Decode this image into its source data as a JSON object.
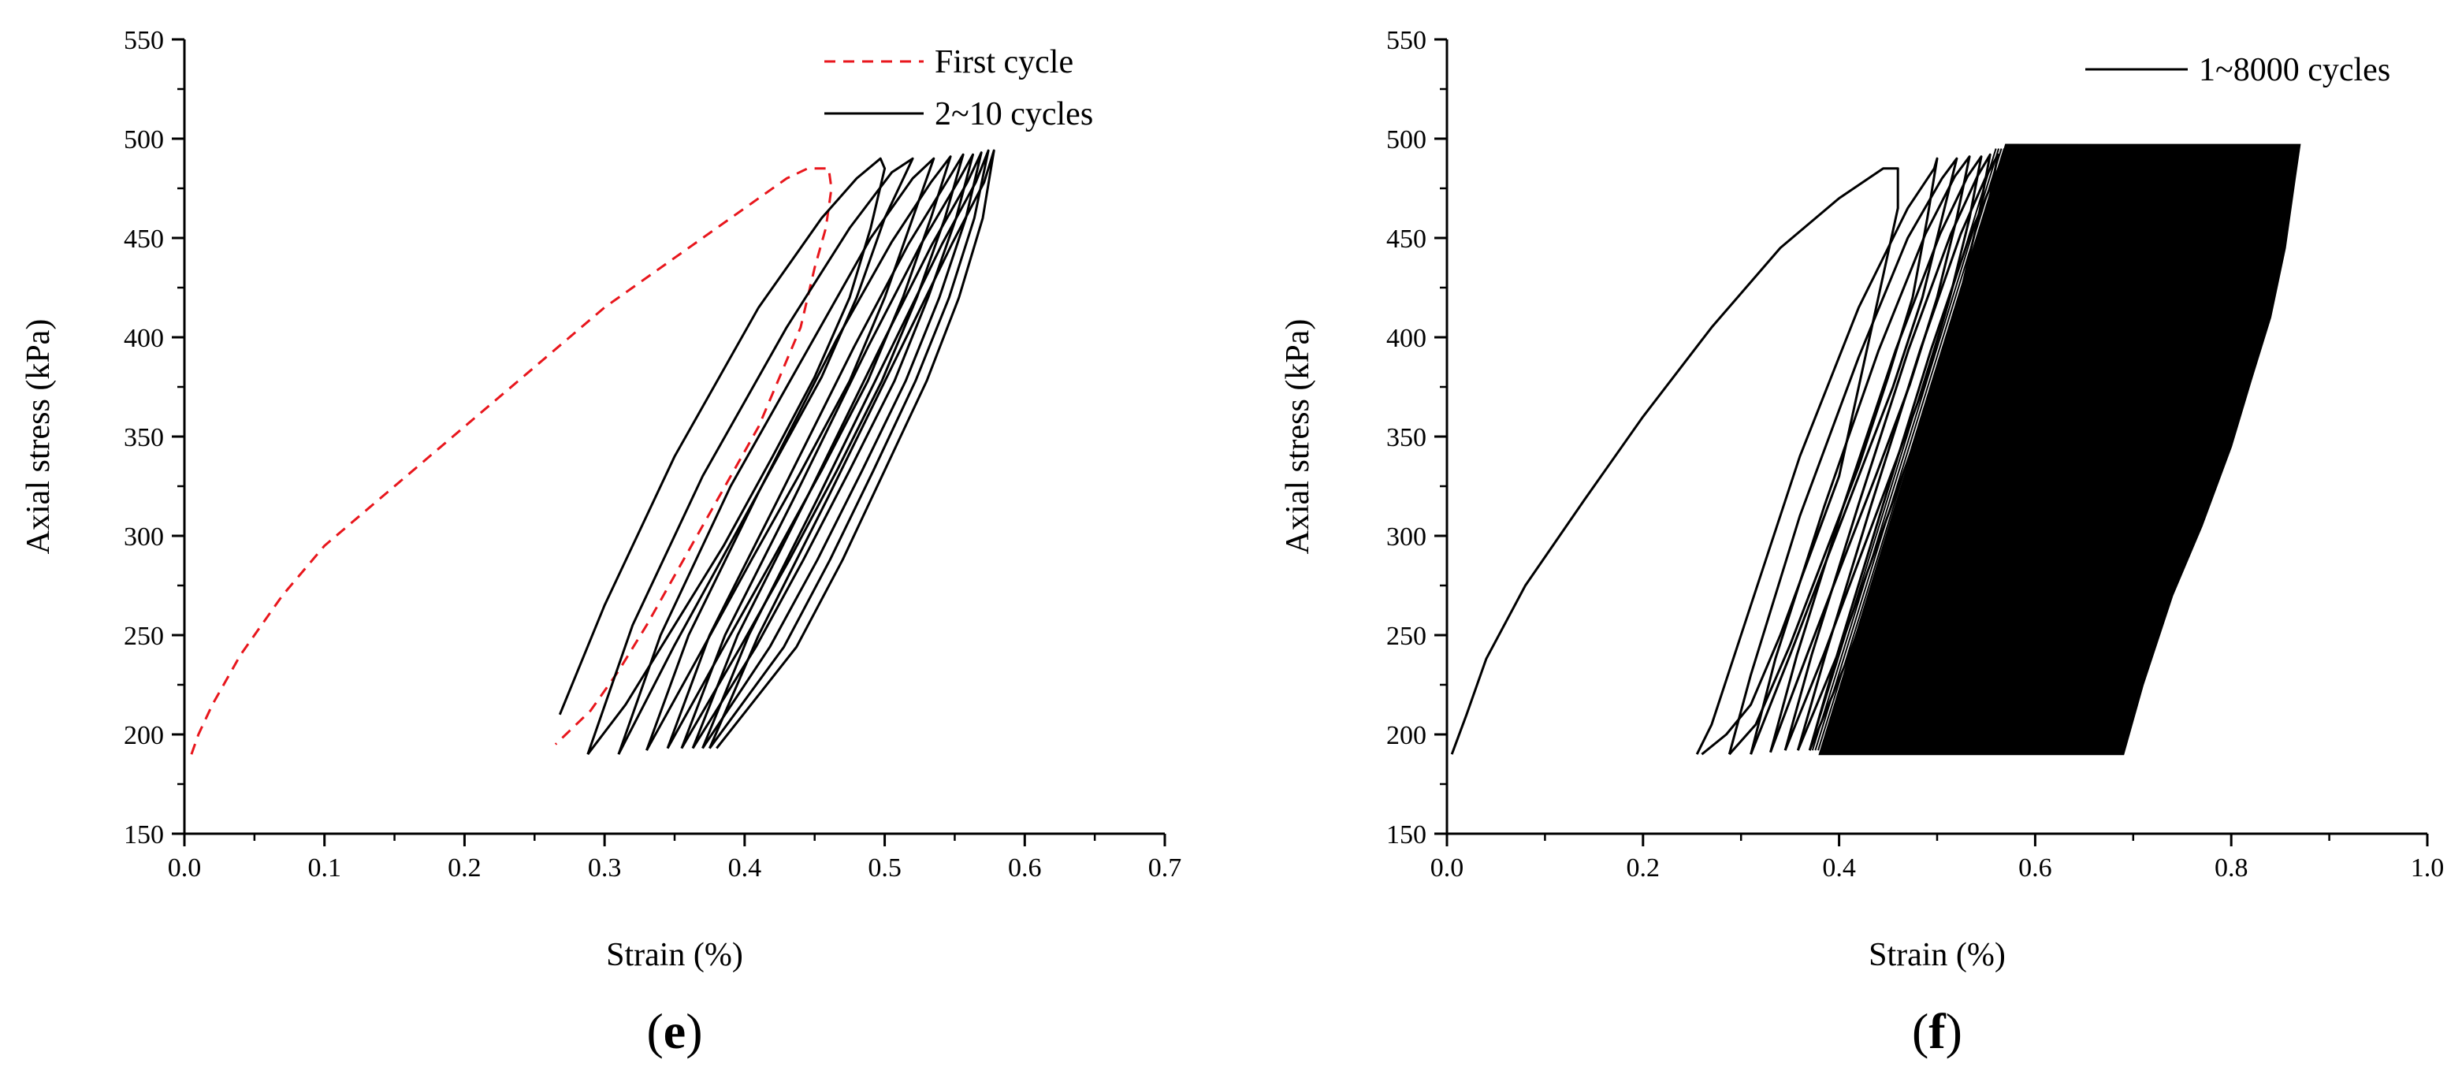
{
  "chart_data": [
    {
      "type": "line",
      "panel_label": "e",
      "xlabel": "Strain (%)",
      "ylabel": "Axial stress  (kPa)",
      "xlim": [
        0.0,
        0.7
      ],
      "ylim": [
        150,
        550
      ],
      "xticks": [
        "0.0",
        "0.1",
        "0.2",
        "0.3",
        "0.4",
        "0.5",
        "0.6",
        "0.7"
      ],
      "yticks": [
        "150",
        "200",
        "250",
        "300",
        "350",
        "400",
        "450",
        "500",
        "550"
      ],
      "grid": false,
      "legend_position": "top-right",
      "series": [
        {
          "name": "First cycle",
          "color": "#e8161c",
          "style": "dashed",
          "x": [
            0.005,
            0.01,
            0.02,
            0.04,
            0.07,
            0.1,
            0.15,
            0.2,
            0.25,
            0.3,
            0.35,
            0.4,
            0.43,
            0.445,
            0.46,
            0.462,
            0.458,
            0.45,
            0.44,
            0.425,
            0.41,
            0.39,
            0.37,
            0.35,
            0.33,
            0.31,
            0.29,
            0.265
          ],
          "y": [
            190,
            200,
            215,
            240,
            270,
            295,
            325,
            355,
            385,
            415,
            440,
            465,
            480,
            485,
            485,
            475,
            455,
            435,
            405,
            380,
            355,
            330,
            305,
            280,
            255,
            232,
            212,
            195
          ]
        },
        {
          "name": "2~10 cycles",
          "color": "#000000",
          "style": "solid",
          "cycles": [
            {
              "x": [
                0.268,
                0.3,
                0.35,
                0.41,
                0.455,
                0.48,
                0.497,
                0.5,
                0.49,
                0.475,
                0.45,
                0.42,
                0.385,
                0.35,
                0.315,
                0.288
              ],
              "y": [
                210,
                265,
                340,
                415,
                460,
                480,
                490,
                485,
                455,
                420,
                380,
                340,
                295,
                255,
                215,
                190
              ]
            },
            {
              "x": [
                0.288,
                0.32,
                0.37,
                0.43,
                0.475,
                0.505,
                0.52,
                0.5,
                0.48,
                0.455,
                0.42,
                0.385,
                0.35,
                0.31
              ],
              "y": [
                190,
                255,
                330,
                405,
                455,
                483,
                490,
                460,
                420,
                380,
                335,
                290,
                245,
                190
              ]
            },
            {
              "x": [
                0.31,
                0.34,
                0.39,
                0.45,
                0.49,
                0.52,
                0.535,
                0.52,
                0.5,
                0.475,
                0.44,
                0.405,
                0.37,
                0.33
              ],
              "y": [
                190,
                250,
                325,
                400,
                450,
                480,
                490,
                460,
                420,
                378,
                332,
                288,
                243,
                192
              ]
            },
            {
              "x": [
                0.33,
                0.36,
                0.41,
                0.465,
                0.505,
                0.533,
                0.547,
                0.533,
                0.513,
                0.488,
                0.455,
                0.42,
                0.385,
                0.345
              ],
              "y": [
                192,
                250,
                322,
                398,
                448,
                478,
                491,
                460,
                420,
                378,
                333,
                288,
                244,
                193
              ]
            },
            {
              "x": [
                0.345,
                0.375,
                0.425,
                0.478,
                0.517,
                0.544,
                0.556,
                0.543,
                0.523,
                0.498,
                0.466,
                0.432,
                0.397,
                0.355
              ],
              "y": [
                193,
                250,
                320,
                395,
                447,
                478,
                492,
                460,
                420,
                378,
                333,
                288,
                244,
                193
              ]
            },
            {
              "x": [
                0.355,
                0.386,
                0.436,
                0.488,
                0.526,
                0.552,
                0.563,
                0.551,
                0.531,
                0.507,
                0.475,
                0.442,
                0.408,
                0.363
              ],
              "y": [
                193,
                250,
                320,
                395,
                447,
                478,
                492,
                460,
                420,
                378,
                333,
                288,
                244,
                193
              ]
            },
            {
              "x": [
                0.363,
                0.395,
                0.445,
                0.497,
                0.534,
                0.559,
                0.569,
                0.558,
                0.539,
                0.515,
                0.484,
                0.452,
                0.418,
                0.37
              ],
              "y": [
                193,
                250,
                320,
                395,
                447,
                478,
                493,
                460,
                420,
                378,
                333,
                288,
                244,
                193
              ]
            },
            {
              "x": [
                0.37,
                0.403,
                0.453,
                0.505,
                0.541,
                0.565,
                0.574,
                0.564,
                0.546,
                0.522,
                0.492,
                0.461,
                0.428,
                0.375
              ],
              "y": [
                193,
                250,
                320,
                395,
                447,
                478,
                494,
                460,
                420,
                378,
                333,
                288,
                244,
                193
              ]
            },
            {
              "x": [
                0.375,
                0.41,
                0.46,
                0.512,
                0.548,
                0.571,
                0.578,
                0.57,
                0.553,
                0.53,
                0.5,
                0.47,
                0.437,
                0.38
              ],
              "y": [
                193,
                250,
                320,
                395,
                447,
                478,
                494,
                460,
                420,
                378,
                333,
                288,
                244,
                193
              ]
            }
          ]
        }
      ]
    },
    {
      "type": "line",
      "panel_label": "f",
      "xlabel": "Strain (%)",
      "ylabel": "Axial stress (kPa)",
      "xlim": [
        0.0,
        1.0
      ],
      "ylim": [
        150,
        550
      ],
      "xticks": [
        "0.0",
        "0.2",
        "0.4",
        "0.6",
        "0.8",
        "1.0"
      ],
      "yticks": [
        "150",
        "200",
        "250",
        "300",
        "350",
        "400",
        "450",
        "500",
        "550"
      ],
      "grid": false,
      "legend_position": "top-right",
      "series": [
        {
          "name": "1~8000 cycles",
          "color": "#000000",
          "style": "solid",
          "first_loading": {
            "x": [
              0.005,
              0.02,
              0.04,
              0.08,
              0.14,
              0.2,
              0.27,
              0.34,
              0.4,
              0.43,
              0.445,
              0.46,
              0.46,
              0.44,
              0.42,
              0.4,
              0.37,
              0.34,
              0.31,
              0.285,
              0.26
            ],
            "y": [
              190,
              210,
              238,
              275,
              318,
              360,
              405,
              445,
              470,
              480,
              485,
              485,
              465,
              420,
              375,
              330,
              290,
              250,
              215,
              200,
              190
            ]
          },
          "early_cycles": [
            {
              "x": [
                0.255,
                0.27,
                0.31,
                0.36,
                0.42,
                0.47,
                0.497,
                0.5,
                0.49,
                0.475,
                0.45,
                0.42,
                0.385,
                0.35,
                0.315,
                0.288
              ],
              "y": [
                190,
                205,
                265,
                340,
                415,
                465,
                485,
                490,
                460,
                420,
                380,
                335,
                290,
                245,
                205,
                190
              ]
            },
            {
              "x": [
                0.288,
                0.31,
                0.36,
                0.42,
                0.47,
                0.505,
                0.52,
                0.505,
                0.485,
                0.455,
                0.42,
                0.385,
                0.35,
                0.31
              ],
              "y": [
                190,
                230,
                310,
                390,
                450,
                480,
                490,
                460,
                420,
                375,
                330,
                285,
                240,
                190
              ]
            },
            {
              "x": [
                0.31,
                0.335,
                0.385,
                0.44,
                0.488,
                0.518,
                0.533,
                0.52,
                0.5,
                0.472,
                0.438,
                0.403,
                0.368,
                0.33
              ],
              "y": [
                190,
                238,
                315,
                393,
                452,
                481,
                491,
                460,
                420,
                376,
                331,
                286,
                241,
                191
              ]
            },
            {
              "x": [
                0.33,
                0.357,
                0.405,
                0.458,
                0.503,
                0.531,
                0.545,
                0.533,
                0.513,
                0.487,
                0.453,
                0.419,
                0.385,
                0.345
              ],
              "y": [
                191,
                240,
                316,
                394,
                452,
                481,
                491,
                460,
                420,
                376,
                331,
                286,
                241,
                192
              ]
            },
            {
              "x": [
                0.345,
                0.372,
                0.42,
                0.471,
                0.514,
                0.541,
                0.554,
                0.542,
                0.523,
                0.498,
                0.465,
                0.432,
                0.399,
                0.358
              ],
              "y": [
                192,
                240,
                316,
                394,
                452,
                481,
                492,
                460,
                420,
                376,
                331,
                286,
                241,
                192
              ]
            },
            {
              "x": [
                0.358,
                0.386,
                0.433,
                0.483,
                0.524,
                0.55,
                0.562,
                0.55,
                0.532,
                0.508,
                0.476,
                0.444,
                0.411,
                0.37
              ],
              "y": [
                192,
                240,
                316,
                394,
                452,
                481,
                492,
                460,
                420,
                376,
                331,
                286,
                241,
                192
              ]
            },
            {
              "x": [
                0.37,
                0.398,
                0.445,
                0.494,
                0.534,
                0.559,
                0.57,
                0.559,
                0.541,
                0.518,
                0.487,
                0.456,
                0.424,
                0.382
              ],
              "y": [
                192,
                240,
                316,
                394,
                452,
                481,
                493,
                460,
                420,
                376,
                331,
                286,
                241,
                192
              ]
            }
          ],
          "dense_band": {
            "lower_left_x": 0.38,
            "lower_right_x": 0.69,
            "upper_left_x": 0.57,
            "upper_right_x": 0.87,
            "y_min": 190,
            "y_max": 497,
            "right_edge": {
              "x": [
                0.69,
                0.71,
                0.74,
                0.77,
                0.8,
                0.82,
                0.84,
                0.855,
                0.865,
                0.87
              ],
              "y": [
                190,
                225,
                270,
                305,
                345,
                378,
                410,
                445,
                480,
                497
              ]
            }
          }
        }
      ]
    }
  ]
}
